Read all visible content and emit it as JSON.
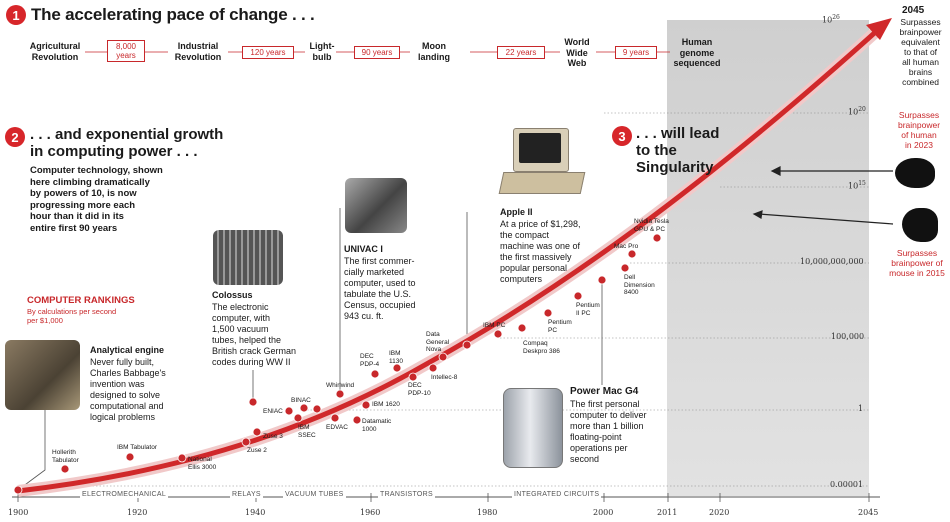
{
  "section1": {
    "number": "1",
    "title": "The accelerating pace of change . . ."
  },
  "milestones": [
    {
      "label": "Agricultural\nRevolution"
    },
    {
      "label": "Industrial\nRevolution"
    },
    {
      "label": "Light-\nbulb"
    },
    {
      "label": "Moon\nlanding"
    },
    {
      "label": "World\nWide\nWeb"
    },
    {
      "label": "Human\ngenome\nsequenced"
    }
  ],
  "gaps": [
    "8,000\nyears",
    "120 years",
    "90 years",
    "22 years",
    "9 years"
  ],
  "section2": {
    "number": "2",
    "title": ". . . and exponential growth\nin computing power . . .",
    "body": "Computer technology, shown\nhere climbing dramatically\nby powers of 10, is now\nprogressing more each\nhour than it did in its\nentire first 90 years"
  },
  "section3": {
    "number": "3",
    "title": ". . . will lead\nto the\nSingularity"
  },
  "rankings": {
    "title": "COMPUTER RANKINGS",
    "subtitle": "By calculations per second\nper $1,000"
  },
  "callouts": {
    "analytical": {
      "title": "Analytical engine",
      "body": "Never fully built,\nCharles Babbage's\ninvention was\ndesigned to solve\ncomputational and\nlogical problems"
    },
    "colossus": {
      "title": "Colossus",
      "body": "The electronic\ncomputer, with\n1,500 vacuum\ntubes, helped the\nBritish crack German\ncodes during WW II"
    },
    "univac": {
      "title": "UNIVAC I",
      "body": "The first commer-\ncially marketed\ncomputer, used to\ntabulate the U.S.\nCensus, occupied\n943 cu. ft."
    },
    "apple": {
      "title": "Apple II",
      "body": "At a price of $1,298,\nthe compact\nmachine was one of\nthe first massively\npopular personal\ncomputers"
    },
    "g4": {
      "title": "Power Mac G4",
      "body": "The first personal\ncomputer to deliver\nmore than 1 billion\nfloating-point\noperations per\nsecond"
    }
  },
  "right_notes": {
    "n2045": {
      "year": "2045",
      "text": "Surpasses\nbrainpower\nequivalent\nto that of\nall human\nbrains\ncombined"
    },
    "n2023": {
      "text": "Surpasses\nbrainpower\nof human\nin 2023"
    },
    "n2015": {
      "text": "Surpasses\nbrainpower of\nmouse in 2015"
    }
  },
  "y_axis": [
    {
      "label": "10",
      "sup": "26"
    },
    {
      "label": "10",
      "sup": "20"
    },
    {
      "label": "10",
      "sup": "15"
    },
    {
      "label": "10,000,000,000",
      "sup": ""
    },
    {
      "label": "100,000",
      "sup": ""
    },
    {
      "label": "1",
      "sup": ""
    },
    {
      "label": "0.00001",
      "sup": ""
    }
  ],
  "x_axis": [
    "1900",
    "1920",
    "1940",
    "1960",
    "1980",
    "2000",
    "2011",
    "2020",
    "2045"
  ],
  "eras": [
    "ELECTROMECHANICAL",
    "RELAYS",
    "VACUUM TUBES",
    "TRANSISTORS",
    "INTEGRATED CIRCUITS"
  ],
  "points": [
    {
      "label": "Hollerith\nTabulator"
    },
    {
      "label": "IBM Tabulator"
    },
    {
      "label": "National\nEllis 3000"
    },
    {
      "label": "Zuse 2"
    },
    {
      "label": "Zuse 3"
    },
    {
      "label": "ENIAC"
    },
    {
      "label": "BINAC"
    },
    {
      "label": "IBM\nSSEC"
    },
    {
      "label": "Whirlwind"
    },
    {
      "label": "EDVAC"
    },
    {
      "label": "DEC\nPDP-4"
    },
    {
      "label": "IBM 1620"
    },
    {
      "label": "Datamatic\n1000"
    },
    {
      "label": "IBM\n1130"
    },
    {
      "label": "DEC\nPDP-10"
    },
    {
      "label": "Data\nGeneral\nNova"
    },
    {
      "label": "Intellec-8"
    },
    {
      "label": "IBM PC"
    },
    {
      "label": "Compaq\nDeskpro 386"
    },
    {
      "label": "Pentium\nPC"
    },
    {
      "label": "Pentium\nII PC"
    },
    {
      "label": "Dell\nDimension\n8400"
    },
    {
      "label": "Mac Pro"
    },
    {
      "label": "Nvidia Tesla\nGPU & PC"
    }
  ]
}
